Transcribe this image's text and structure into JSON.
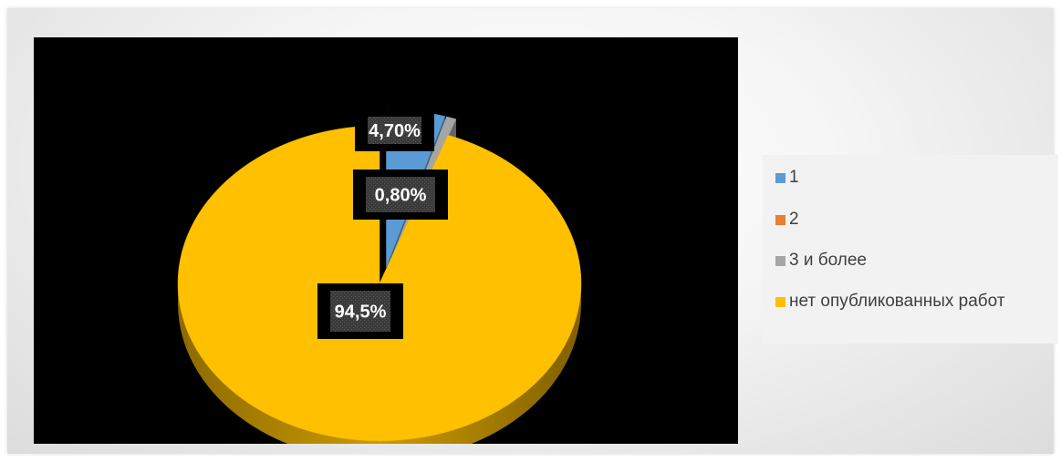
{
  "chart_data": {
    "type": "pie",
    "variant": "3d",
    "categories": [
      "1",
      "2",
      "3 и более",
      "нет опубликованных работ"
    ],
    "values": [
      4.7,
      0.0,
      0.8,
      94.5
    ],
    "data_labels": [
      "4,70%",
      "",
      "0,80%",
      "94,5%"
    ],
    "colors": [
      "#5B9BD5",
      "#ED7D31",
      "#A5A5A5",
      "#FFC000"
    ],
    "exploded": [
      true,
      true,
      true,
      false
    ],
    "legend_position": "right",
    "plot_background": "#000000"
  },
  "legend": {
    "items": [
      {
        "label": "1",
        "color": "#5B9BD5"
      },
      {
        "label": "2",
        "color": "#ED7D31"
      },
      {
        "label": "3 и более",
        "color": "#A5A5A5"
      },
      {
        "label": "нет опубликованных работ",
        "color": "#FFC000"
      }
    ]
  }
}
